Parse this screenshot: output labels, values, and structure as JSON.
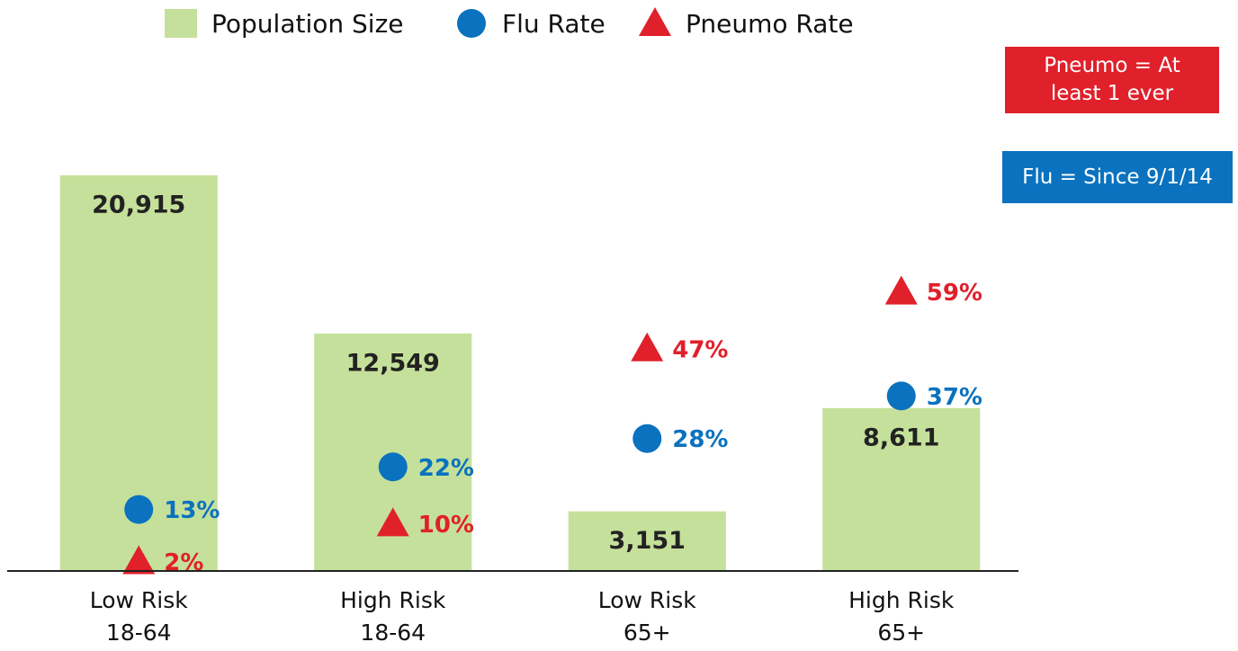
{
  "chart_data": {
    "type": "bar",
    "categories": [
      "Low Risk\n18-64",
      "High Risk\n18-64",
      "Low Risk\n65+",
      "High Risk\n65+"
    ],
    "series": [
      {
        "name": "Population Size",
        "color": "#c5e09b",
        "type": "bar",
        "values": [
          20915,
          12549,
          3151,
          8611
        ],
        "value_labels": [
          "20,915",
          "12,549",
          "3,151",
          "8,611"
        ]
      },
      {
        "name": "Flu Rate",
        "color": "#0a72be",
        "type": "scatter",
        "marker": "circle",
        "axis": "y2",
        "values": [
          13,
          22,
          28,
          37
        ],
        "value_labels": [
          "13%",
          "22%",
          "28%",
          "37%"
        ]
      },
      {
        "name": "Pneumo Rate",
        "color": "#e0202a",
        "type": "scatter",
        "marker": "triangle",
        "axis": "y2",
        "values": [
          2,
          10,
          47,
          59
        ],
        "value_labels": [
          "2%",
          "10%",
          "47%",
          "59%"
        ]
      }
    ],
    "ylim": [
      0,
      25000
    ],
    "y2lim": [
      0,
      100
    ],
    "annotations": [
      {
        "text": "Pneumo = At\nleast 1 ever",
        "color": "#e0202a"
      },
      {
        "text": "Flu = Since 9/1/14",
        "color": "#0a72be"
      }
    ]
  }
}
